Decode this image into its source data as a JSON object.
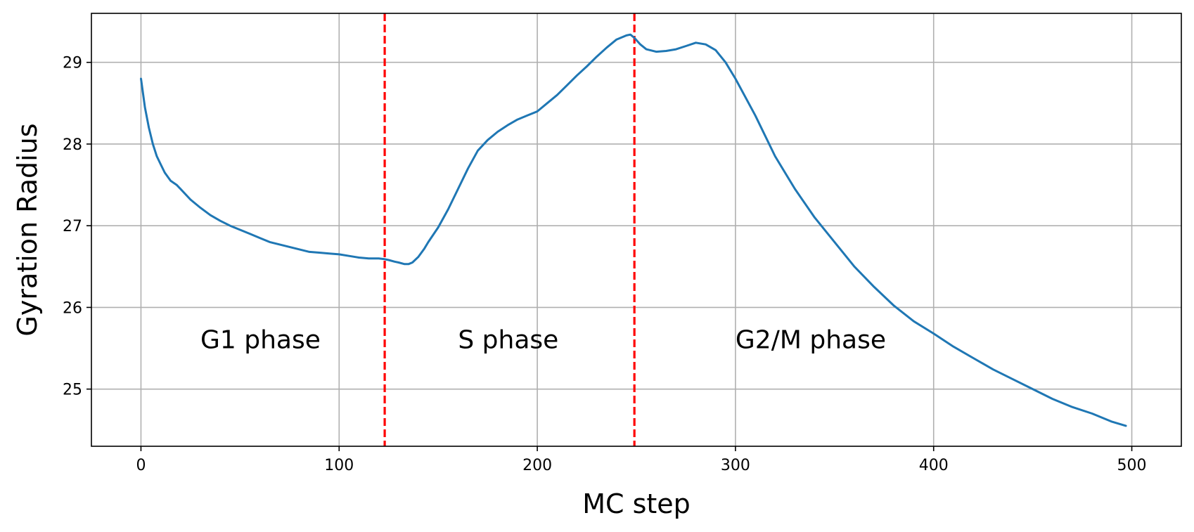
{
  "chart_data": {
    "type": "line",
    "title": "",
    "xlabel": "MC step",
    "ylabel": "Gyration Radius",
    "xlim": [
      -25,
      525
    ],
    "ylim": [
      24.3,
      29.6
    ],
    "grid": true,
    "xticks": [
      0,
      100,
      200,
      300,
      400,
      500
    ],
    "yticks": [
      25,
      26,
      27,
      28,
      29
    ],
    "xtick_labels": [
      "0",
      "100",
      "200",
      "300",
      "400",
      "500"
    ],
    "ytick_labels": [
      "25",
      "26",
      "27",
      "28",
      "29"
    ],
    "line_color": "#1f77b4",
    "series": [
      {
        "x": [
          0,
          2,
          4,
          6,
          8,
          10,
          12,
          15,
          18,
          20,
          25,
          30,
          35,
          40,
          45,
          50,
          55,
          60,
          65,
          70,
          75,
          80,
          85,
          90,
          95,
          100,
          105,
          110,
          115,
          120,
          123,
          125,
          128,
          130,
          133,
          135,
          137,
          140,
          143,
          145,
          150,
          155,
          160,
          165,
          170,
          175,
          180,
          185,
          190,
          195,
          200,
          205,
          210,
          215,
          220,
          225,
          230,
          235,
          240,
          245,
          247,
          249,
          252,
          255,
          260,
          265,
          270,
          275,
          280,
          285,
          290,
          295,
          300,
          310,
          320,
          330,
          340,
          350,
          360,
          370,
          380,
          390,
          400,
          410,
          420,
          430,
          440,
          450,
          460,
          470,
          480,
          490,
          497
        ],
        "y": [
          28.8,
          28.45,
          28.2,
          28.0,
          27.85,
          27.75,
          27.65,
          27.55,
          27.5,
          27.45,
          27.32,
          27.22,
          27.13,
          27.06,
          27.0,
          26.95,
          26.9,
          26.85,
          26.8,
          26.77,
          26.74,
          26.71,
          26.68,
          26.67,
          26.66,
          26.65,
          26.63,
          26.61,
          26.6,
          26.6,
          26.59,
          26.58,
          26.56,
          26.55,
          26.53,
          26.53,
          26.55,
          26.62,
          26.72,
          26.8,
          26.98,
          27.2,
          27.45,
          27.7,
          27.92,
          28.05,
          28.15,
          28.23,
          28.3,
          28.35,
          28.4,
          28.5,
          28.6,
          28.72,
          28.84,
          28.95,
          29.07,
          29.18,
          29.28,
          29.33,
          29.34,
          29.3,
          29.22,
          29.16,
          29.13,
          29.14,
          29.16,
          29.2,
          29.24,
          29.22,
          29.15,
          29.0,
          28.8,
          28.35,
          27.85,
          27.45,
          27.1,
          26.8,
          26.5,
          26.25,
          26.02,
          25.83,
          25.68,
          25.52,
          25.38,
          25.24,
          25.12,
          25.0,
          24.88,
          24.78,
          24.7,
          24.6,
          24.55
        ]
      }
    ],
    "vlines": [
      {
        "x": 123,
        "color": "#ff0000",
        "style": "dashed"
      },
      {
        "x": 249,
        "color": "#ff0000",
        "style": "dashed"
      }
    ],
    "annotations": [
      {
        "text": "G1 phase",
        "x": 30,
        "y": 25.5
      },
      {
        "text": "S phase",
        "x": 160,
        "y": 25.5
      },
      {
        "text": "G2/M phase",
        "x": 300,
        "y": 25.5
      }
    ]
  }
}
